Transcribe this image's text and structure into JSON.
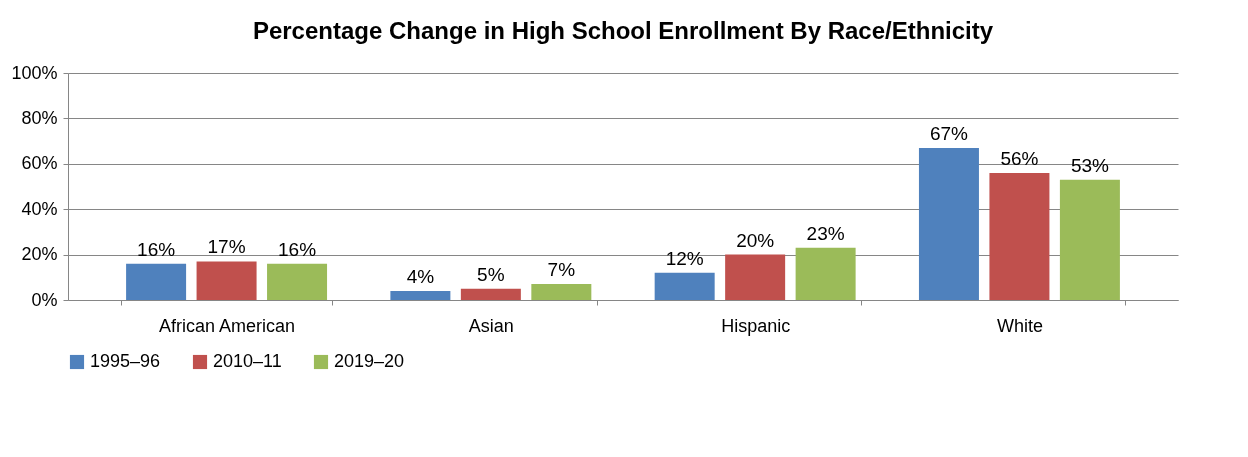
{
  "chart_data": {
    "type": "bar",
    "title": "Percentage Change in High School Enrollment By Race/Ethnicity",
    "categories": [
      "African American",
      "Asian",
      "Hispanic",
      "White"
    ],
    "series": [
      {
        "name": "1995–96",
        "color": "#4f81bd",
        "values": [
          16,
          4,
          12,
          67
        ],
        "value_labels": [
          "16%",
          "4%",
          "12%",
          "67%"
        ]
      },
      {
        "name": "2010–11",
        "color": "#c0504d",
        "values": [
          17,
          5,
          20,
          56
        ],
        "value_labels": [
          "17%",
          "5%",
          "20%",
          "56%"
        ]
      },
      {
        "name": "2019–20",
        "color": "#9bbb59",
        "values": [
          16,
          7,
          23,
          53
        ],
        "value_labels": [
          "16%",
          "7%",
          "23%",
          "53%"
        ]
      }
    ],
    "ylim": [
      0,
      100
    ],
    "yticks": [
      {
        "value": 0,
        "label": "0%"
      },
      {
        "value": 20,
        "label": "20%"
      },
      {
        "value": 40,
        "label": "40%"
      },
      {
        "value": 60,
        "label": "60%"
      },
      {
        "value": 80,
        "label": "80%"
      },
      {
        "value": 100,
        "label": "100%"
      }
    ],
    "grid": "y",
    "legend": "bottom"
  }
}
